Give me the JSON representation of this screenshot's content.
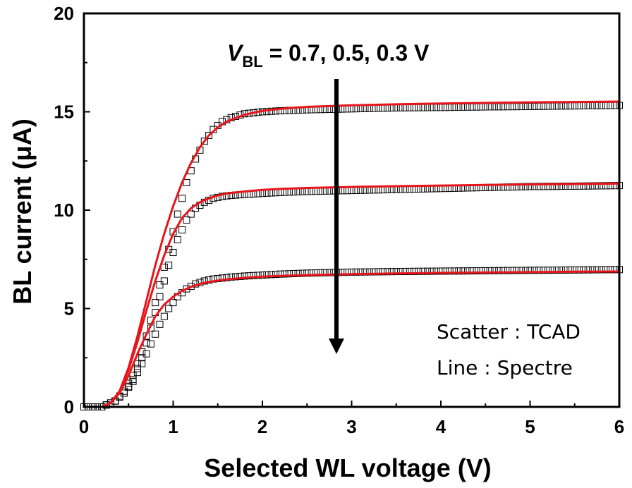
{
  "chart_data": {
    "type": "line",
    "xlabel": "Selected WL voltage (V)",
    "ylabel": "BL current (μA)",
    "xlim": [
      0,
      6
    ],
    "ylim": [
      0,
      20
    ],
    "x_ticks": [
      "0",
      "1",
      "2",
      "3",
      "4",
      "5",
      "6"
    ],
    "y_ticks": [
      "0",
      "5",
      "10",
      "15",
      "20"
    ],
    "annotation": {
      "symbol": "V",
      "subscript": "BL",
      "text": " = 0.7, 0.5, 0.3 V"
    },
    "legend": {
      "scatter": "Scatter : TCAD",
      "line": "Line : Spectre",
      "placement": "bottom-right"
    },
    "colors": {
      "line": "#e8141b",
      "marker": "#000000",
      "arrow": "#000000"
    },
    "series": [
      {
        "vbl": 0.7,
        "line": {
          "x": [
            0,
            0.2,
            0.3,
            0.4,
            0.5,
            0.6,
            0.7,
            0.8,
            0.9,
            1.0,
            1.1,
            1.2,
            1.3,
            1.4,
            1.5,
            1.6,
            1.8,
            2.0,
            2.2,
            2.5,
            3.0,
            3.5,
            4.0,
            4.5,
            5.0,
            5.5,
            6.0
          ],
          "y": [
            0,
            0,
            0.2,
            0.8,
            2.0,
            3.6,
            5.4,
            7.2,
            8.8,
            10.2,
            11.4,
            12.4,
            13.2,
            13.8,
            14.2,
            14.5,
            14.85,
            15.05,
            15.15,
            15.25,
            15.33,
            15.38,
            15.42,
            15.45,
            15.48,
            15.5,
            15.52
          ]
        },
        "scatter": {
          "x": [
            0,
            0.2,
            0.35,
            0.45,
            0.55,
            0.65,
            0.75,
            0.85,
            0.95,
            1.05,
            1.15,
            1.25,
            1.35,
            1.45,
            1.55,
            1.65,
            1.8,
            2.0,
            2.2,
            2.5,
            3.0,
            3.5,
            4.0,
            4.5,
            5.0,
            5.5,
            6.0
          ],
          "y": [
            0,
            0,
            0.3,
            0.8,
            1.6,
            2.8,
            4.4,
            6.2,
            8.0,
            9.8,
            11.4,
            12.6,
            13.5,
            14.1,
            14.5,
            14.7,
            14.9,
            15.0,
            15.05,
            15.1,
            15.15,
            15.2,
            15.22,
            15.25,
            15.27,
            15.3,
            15.32
          ]
        }
      },
      {
        "vbl": 0.5,
        "line": {
          "x": [
            0,
            0.2,
            0.3,
            0.4,
            0.5,
            0.6,
            0.7,
            0.8,
            0.9,
            1.0,
            1.1,
            1.2,
            1.3,
            1.4,
            1.5,
            1.6,
            1.8,
            2.0,
            2.2,
            2.5,
            3.0,
            3.5,
            4.0,
            4.5,
            5.0,
            5.5,
            6.0
          ],
          "y": [
            0,
            0,
            0.2,
            0.8,
            1.9,
            3.3,
            4.9,
            6.4,
            7.7,
            8.8,
            9.6,
            10.1,
            10.4,
            10.6,
            10.75,
            10.85,
            10.95,
            11.03,
            11.08,
            11.13,
            11.18,
            11.22,
            11.25,
            11.28,
            11.31,
            11.33,
            11.35
          ]
        },
        "scatter": {
          "x": [
            0,
            0.2,
            0.35,
            0.45,
            0.55,
            0.65,
            0.75,
            0.85,
            0.95,
            1.05,
            1.15,
            1.25,
            1.35,
            1.45,
            1.55,
            1.65,
            1.8,
            2.0,
            2.2,
            2.5,
            3.0,
            3.5,
            4.0,
            4.5,
            5.0,
            5.5,
            6.0
          ],
          "y": [
            0,
            0,
            0.3,
            0.7,
            1.4,
            2.5,
            4.0,
            5.6,
            7.2,
            8.5,
            9.5,
            10.1,
            10.4,
            10.6,
            10.7,
            10.75,
            10.8,
            10.85,
            10.9,
            10.95,
            11.0,
            11.05,
            11.1,
            11.15,
            11.2,
            11.22,
            11.25
          ]
        }
      },
      {
        "vbl": 0.3,
        "line": {
          "x": [
            0,
            0.2,
            0.3,
            0.4,
            0.5,
            0.6,
            0.7,
            0.8,
            0.9,
            1.0,
            1.1,
            1.2,
            1.3,
            1.4,
            1.5,
            1.6,
            1.8,
            2.0,
            2.2,
            2.5,
            3.0,
            3.5,
            4.0,
            4.5,
            5.0,
            5.5,
            6.0
          ],
          "y": [
            0,
            0,
            0.2,
            0.7,
            1.6,
            2.7,
            3.7,
            4.6,
            5.2,
            5.6,
            5.9,
            6.1,
            6.25,
            6.35,
            6.42,
            6.48,
            6.56,
            6.62,
            6.66,
            6.7,
            6.75,
            6.78,
            6.81,
            6.83,
            6.85,
            6.87,
            6.88
          ]
        },
        "scatter": {
          "x": [
            0,
            0.2,
            0.35,
            0.45,
            0.55,
            0.65,
            0.75,
            0.85,
            0.95,
            1.05,
            1.15,
            1.25,
            1.35,
            1.45,
            1.55,
            1.65,
            1.8,
            2.0,
            2.2,
            2.5,
            3.0,
            3.5,
            4.0,
            4.5,
            5.0,
            5.5,
            6.0
          ],
          "y": [
            0,
            0,
            0.3,
            0.7,
            1.3,
            2.2,
            3.2,
            4.2,
            5.0,
            5.6,
            6.0,
            6.25,
            6.4,
            6.5,
            6.55,
            6.6,
            6.65,
            6.7,
            6.75,
            6.8,
            6.85,
            6.88,
            6.9,
            6.92,
            6.94,
            6.96,
            6.98
          ]
        }
      }
    ]
  }
}
